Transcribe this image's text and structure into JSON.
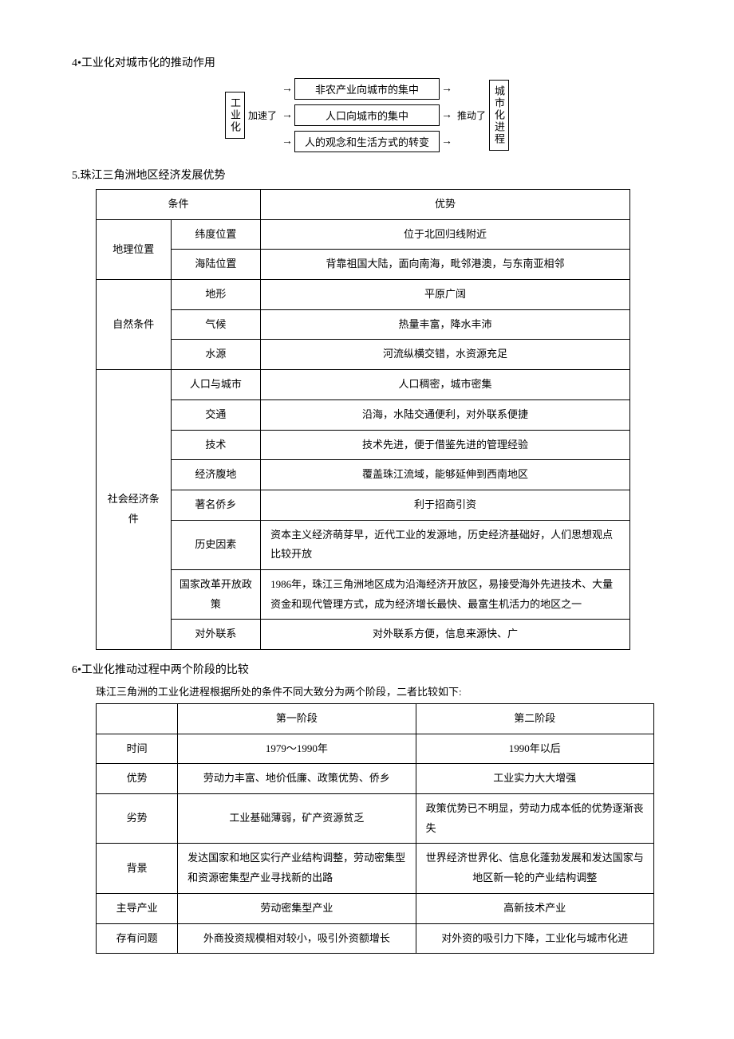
{
  "section4": {
    "title": "4•工业化对城市化的推动作用",
    "diagram": {
      "left_box": "工业化",
      "left_label": "加速了",
      "mid_boxes": [
        "非农产业向城市的集中",
        "人口向城市的集中",
        "人的观念和生活方式的转变"
      ],
      "right_label": "推动了",
      "right_box": "城市化进程"
    }
  },
  "section5": {
    "title": "5.珠江三角洲地区经济发展优势",
    "header": {
      "cond": "条件",
      "adv": "优势"
    },
    "groups": [
      {
        "name": "地理位置",
        "rows": [
          {
            "sub": "纬度位置",
            "val": "位于北回归线附近"
          },
          {
            "sub": "海陆位置",
            "val": "背靠祖国大陆，面向南海，毗邻港澳，与东南亚相邻"
          }
        ]
      },
      {
        "name": "自然条件",
        "rows": [
          {
            "sub": "地形",
            "val": "平原广阔"
          },
          {
            "sub": "气候",
            "val": "热量丰富，降水丰沛"
          },
          {
            "sub": "水源",
            "val": "河流纵横交错，水资源充足"
          }
        ]
      },
      {
        "name": "社会经济条件",
        "rows": [
          {
            "sub": "人口与城市",
            "val": "人口稠密，城市密集"
          },
          {
            "sub": "交通",
            "val": "沿海，水陆交通便利，对外联系便捷"
          },
          {
            "sub": "技术",
            "val": "技术先进，便于借鉴先进的管理经验"
          },
          {
            "sub": "经济腹地",
            "val": "覆盖珠江流域，能够延伸到西南地区"
          },
          {
            "sub": "著名侨乡",
            "val": "利于招商引资"
          },
          {
            "sub": "历史因素",
            "val": "资本主义经济萌芽早，近代工业的发源地，历史经济基础好，人们思想观点比较开放"
          },
          {
            "sub": "国家改革开放政策",
            "val": "1986年，珠江三角洲地区成为沿海经济开放区，易接受海外先进技术、大量资金和现代管理方式，成为经济增长最快、最富生机活力的地区之一"
          },
          {
            "sub": "对外联系",
            "val": "对外联系方便，信息来源快、广"
          }
        ]
      }
    ]
  },
  "section6": {
    "title": "6•工业化推动过程中两个阶段的比较",
    "intro": "珠江三角洲的工业化进程根据所处的条件不同大致分为两个阶段，二者比较如下:",
    "header": {
      "blank": "",
      "p1": "第一阶段",
      "p2": "第二阶段"
    },
    "rows": [
      {
        "label": "时间",
        "p1": "1979～1990年",
        "p2": "1990年以后"
      },
      {
        "label": "优势",
        "p1": "劳动力丰富、地价低廉、政策优势、侨乡",
        "p2": "工业实力大大增强"
      },
      {
        "label": "劣势",
        "p1": "工业基础薄弱，矿产资源贫乏",
        "p2": "政策优势已不明显，劳动力成本低的优势逐渐丧失"
      },
      {
        "label": "背景",
        "p1": "发达国家和地区实行产业结构调整，劳动密集型和资源密集型产业寻找新的出路",
        "p2": "世界经济世界化、信息化蓬勃发展和发达国家与地区新一轮的产业结构调整"
      },
      {
        "label": "主导产业",
        "p1": "劳动密集型产业",
        "p2": "高新技术产业"
      },
      {
        "label": "存有问题",
        "p1": "外商投资规模相对较小，吸引外资额增长",
        "p2": "对外资的吸引力下降，工业化与城市化进"
      }
    ]
  }
}
